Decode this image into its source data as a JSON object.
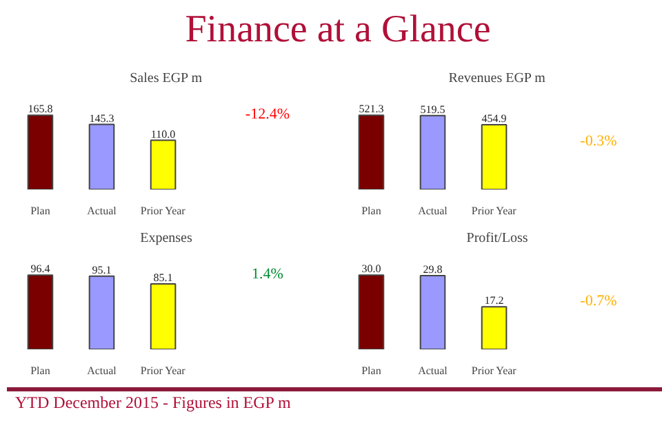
{
  "chart_data": [
    {
      "type": "bar",
      "title": "Sales EGP m",
      "categories": [
        "Plan",
        "Actual",
        "Prior Year"
      ],
      "values": [
        165.8,
        145.3,
        110.0
      ],
      "value_labels": [
        "165.8",
        "145.3",
        "110.0"
      ],
      "colors": [
        "#7a0000",
        "#9999ff",
        "#ffff00"
      ],
      "tick_labels": "x",
      "annotations": [
        "Finance at a Glance",
        "-12.4%"
      ]
    },
    {
      "type": "bar",
      "title": "Revenues EGP m",
      "categories": [
        "Plan",
        "Actual",
        "Prior Year"
      ],
      "values": [
        521.3,
        519.5,
        454.9
      ],
      "value_labels": [
        "521.3",
        "519.5",
        "454.9"
      ],
      "colors": [
        "#7a0000",
        "#9999ff",
        "#ffff00"
      ],
      "tick_labels": "x",
      "annotations": [
        "-0.3%"
      ]
    },
    {
      "type": "bar",
      "title": "Expenses",
      "categories": [
        "Plan",
        "Actual",
        "Prior Year"
      ],
      "values": [
        96.4,
        95.1,
        85.1
      ],
      "value_labels": [
        "96.4",
        "95.1",
        "85.1"
      ],
      "colors": [
        "#7a0000",
        "#9999ff",
        "#ffff00"
      ],
      "tick_labels": "x",
      "annotations": [
        "1.4%"
      ]
    },
    {
      "type": "bar",
      "title": "Profit/Loss",
      "categories": [
        "Plan",
        "Actual",
        "Prior Year"
      ],
      "values": [
        30.0,
        29.8,
        17.2
      ],
      "value_labels": [
        "30.0",
        "29.8",
        "17.2"
      ],
      "colors": [
        "#7a0000",
        "#9999ff",
        "#ffff00"
      ],
      "tick_labels": "x",
      "annotations": [
        "YTD December 2015 - Figures in EGP m",
        "-0.7%"
      ]
    }
  ]
}
